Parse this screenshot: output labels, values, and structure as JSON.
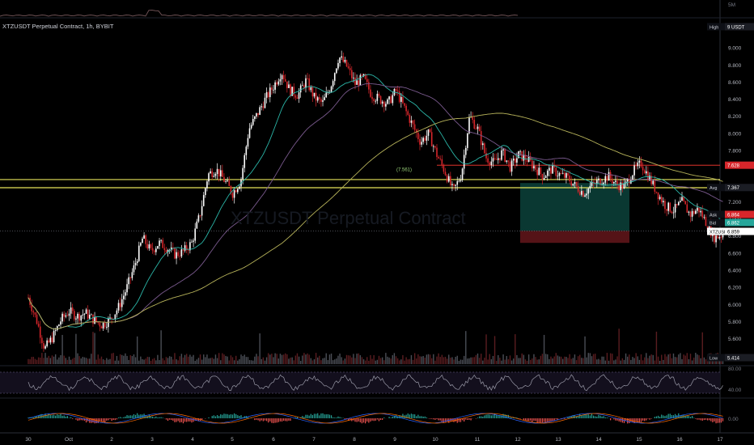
{
  "header": {
    "symbol_line": "XTZUSDT Perpetual Contract, 1h, BYBIT",
    "watermark": "XTZUSDT Perpetual Contract",
    "volume_axis_label": "5M"
  },
  "colors": {
    "background": "#000000",
    "up": "#ffffff",
    "down": "#d7262b",
    "ma_fast": "#2bb7a9",
    "ma_mid": "#7a5a8e",
    "ma_slow": "#b7b35a",
    "hline_yellow": "#e6e45a",
    "hline_red": "#ff3b30",
    "target_zone": "#0b3b35",
    "stop_zone": "#5a1418"
  },
  "chart_data": {
    "type": "candlestick",
    "symbol": "XTZUSDT",
    "timeframe": "1h",
    "exchange": "BYBIT",
    "y_axis": {
      "ticks": [
        "9.000",
        "8.800",
        "8.600",
        "8.400",
        "8.200",
        "8.000",
        "7.800",
        "7.200",
        "7.000",
        "6.800",
        "6.600",
        "6.400",
        "6.200",
        "6.000",
        "5.800",
        "5.600"
      ],
      "range": [
        5.35,
        9.2
      ]
    },
    "x_axis": {
      "ticks": [
        "30",
        "Oct",
        "2",
        "3",
        "4",
        "5",
        "6",
        "7",
        "8",
        "9",
        "10",
        "11",
        "12",
        "13",
        "14",
        "15",
        "16",
        "17"
      ]
    },
    "price_levels": [
      {
        "label": "High",
        "value": "9 USDT"
      },
      {
        "label": "",
        "value": "7.628"
      },
      {
        "label": "Avg",
        "value": "7.367"
      },
      {
        "label": "Ask",
        "value": "6.864"
      },
      {
        "label": "Bid",
        "value": "6.862"
      },
      {
        "label": "XTZUSDT",
        "value": "6.859"
      },
      {
        "label": "Low",
        "value": "5.414"
      }
    ],
    "horizontal_lines": [
      {
        "name": "resistance-upper",
        "y": 7.46
      },
      {
        "name": "resistance-lower",
        "y": 7.365
      },
      {
        "name": "red-level",
        "y": 7.628
      },
      {
        "name": "current-price",
        "y": 6.859
      }
    ],
    "position": {
      "entry": 6.86,
      "target": 7.42,
      "stop": 6.72,
      "x_from": 12.05,
      "x_to": 14.85
    },
    "annotations": [
      "(7.561)"
    ],
    "oscillator": {
      "ticks": [
        "80.00",
        "40.00"
      ]
    },
    "macd": {
      "ticks": [
        "0.00"
      ]
    },
    "close_path": [
      [
        29.0,
        6.08
      ],
      [
        29.2,
        5.82
      ],
      [
        29.4,
        5.48
      ],
      [
        29.6,
        5.62
      ],
      [
        29.8,
        5.82
      ],
      [
        30.0,
        5.92
      ],
      [
        30.2,
        5.86
      ],
      [
        30.4,
        5.9
      ],
      [
        30.6,
        5.82
      ],
      [
        30.8,
        5.76
      ],
      [
        31.0,
        5.82
      ],
      [
        31.2,
        5.96
      ],
      [
        31.4,
        6.18
      ],
      [
        31.6,
        6.45
      ],
      [
        31.8,
        6.78
      ],
      [
        32.0,
        6.62
      ],
      [
        32.2,
        6.72
      ],
      [
        32.4,
        6.66
      ],
      [
        32.6,
        6.58
      ],
      [
        32.8,
        6.62
      ],
      [
        33.0,
        6.72
      ],
      [
        33.2,
        7.05
      ],
      [
        33.4,
        7.52
      ],
      [
        33.6,
        7.58
      ],
      [
        33.8,
        7.45
      ],
      [
        34.0,
        7.3
      ],
      [
        34.2,
        7.45
      ],
      [
        34.4,
        8.05
      ],
      [
        34.6,
        8.22
      ],
      [
        34.8,
        8.4
      ],
      [
        35.0,
        8.55
      ],
      [
        35.2,
        8.72
      ],
      [
        35.4,
        8.5
      ],
      [
        35.6,
        8.45
      ],
      [
        35.8,
        8.62
      ],
      [
        36.0,
        8.42
      ],
      [
        36.2,
        8.35
      ],
      [
        36.4,
        8.55
      ],
      [
        36.6,
        8.9
      ],
      [
        36.8,
        8.78
      ],
      [
        37.0,
        8.58
      ],
      [
        37.2,
        8.65
      ],
      [
        37.4,
        8.45
      ],
      [
        37.6,
        8.4
      ],
      [
        37.8,
        8.35
      ],
      [
        38.0,
        8.5
      ],
      [
        38.2,
        8.3
      ],
      [
        38.4,
        8.1
      ],
      [
        38.6,
        7.9
      ],
      [
        38.8,
        8.0
      ],
      [
        39.0,
        7.75
      ],
      [
        39.2,
        7.55
      ],
      [
        39.4,
        7.32
      ],
      [
        39.6,
        7.52
      ],
      [
        39.8,
        8.2
      ],
      [
        40.0,
        8.05
      ],
      [
        40.2,
        7.72
      ],
      [
        40.4,
        7.65
      ],
      [
        40.6,
        7.78
      ],
      [
        40.8,
        7.6
      ],
      [
        41.0,
        7.75
      ],
      [
        41.2,
        7.7
      ],
      [
        41.4,
        7.6
      ],
      [
        41.6,
        7.5
      ],
      [
        41.8,
        7.58
      ],
      [
        42.0,
        7.52
      ],
      [
        42.2,
        7.48
      ],
      [
        42.4,
        7.38
      ],
      [
        42.6,
        7.3
      ],
      [
        42.8,
        7.4
      ],
      [
        43.0,
        7.45
      ],
      [
        43.2,
        7.5
      ],
      [
        43.4,
        7.4
      ],
      [
        43.6,
        7.38
      ],
      [
        43.8,
        7.55
      ],
      [
        44.0,
        7.65
      ],
      [
        44.2,
        7.48
      ],
      [
        44.4,
        7.3
      ],
      [
        44.6,
        7.15
      ],
      [
        44.8,
        7.1
      ],
      [
        45.0,
        7.2
      ],
      [
        45.2,
        7.05
      ],
      [
        45.4,
        7.12
      ],
      [
        45.6,
        6.95
      ],
      [
        45.8,
        6.78
      ],
      [
        46.0,
        6.82
      ]
    ]
  }
}
